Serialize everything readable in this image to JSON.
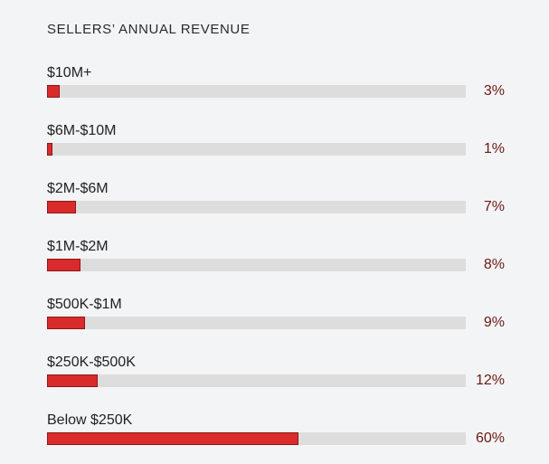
{
  "chart_data": {
    "type": "bar",
    "orientation": "horizontal",
    "title": "SELLERS’ ANNUAL REVENUE",
    "categories": [
      "$10M+",
      "$6M-$10M",
      "$2M-$6M",
      "$1M-$2M",
      "$500K-$1M",
      "$250K-$500K",
      "Below $250K"
    ],
    "values": [
      3,
      1,
      7,
      8,
      9,
      12,
      60
    ],
    "value_labels": [
      "3%",
      "1%",
      "7%",
      "8%",
      "9%",
      "12%",
      "60%"
    ],
    "unit": "%",
    "xlim": [
      0,
      100
    ],
    "grid": false,
    "colors": {
      "bar": "#d92b2b",
      "bar_border": "#8f1717",
      "track": "#dedddd",
      "value_text": "#6b1a12",
      "background": "#f3f4f6"
    }
  }
}
